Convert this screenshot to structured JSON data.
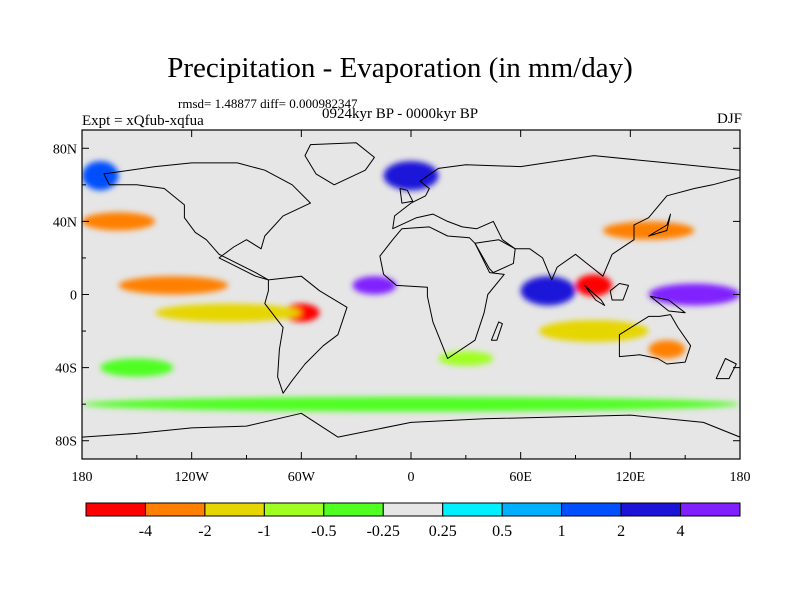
{
  "header": {
    "title": "Precipitation - Evaporation (in mm/day)",
    "stats": "rmsd= 1.48877 diff= 0.000982347",
    "experiment": "Expt = xQfub-xqfua",
    "period": "0924kyr BP - 0000kyr BP",
    "season": "DJF"
  },
  "axes": {
    "x_ticks": [
      {
        "lon": -180,
        "label": "180"
      },
      {
        "lon": -120,
        "label": "120W"
      },
      {
        "lon": -60,
        "label": "60W"
      },
      {
        "lon": 0,
        "label": "0"
      },
      {
        "lon": 60,
        "label": "60E"
      },
      {
        "lon": 120,
        "label": "120E"
      },
      {
        "lon": 180,
        "label": "180"
      }
    ],
    "y_ticks": [
      {
        "lat": 80,
        "label": "80N"
      },
      {
        "lat": 40,
        "label": "40N"
      },
      {
        "lat": 0,
        "label": "0"
      },
      {
        "lat": -40,
        "label": "40S"
      },
      {
        "lat": -80,
        "label": "80S"
      }
    ],
    "lon_range": [
      -180,
      180
    ],
    "lat_range": [
      -90,
      90
    ]
  },
  "colorbar": {
    "colors": [
      "#ff0000",
      "#ff8000",
      "#e6d600",
      "#a0ff20",
      "#50ff20",
      "#e6e6e6",
      "#00f0ff",
      "#00b0ff",
      "#0050ff",
      "#1e14d8",
      "#8020ff"
    ],
    "labels": [
      "-4",
      "-2",
      "-1",
      "-0.5",
      "-0.25",
      "0.25",
      "0.5",
      "1",
      "2",
      "4"
    ]
  },
  "map": {
    "background_color": "#e6e6e6",
    "anomaly_regions": [
      {
        "lon": 155,
        "lat": 0,
        "rx": 25,
        "ry": 6,
        "color": "#8020ff"
      },
      {
        "lon": 75,
        "lat": 2,
        "rx": 15,
        "ry": 8,
        "color": "#1e14d8"
      },
      {
        "lon": -20,
        "lat": 5,
        "rx": 12,
        "ry": 5,
        "color": "#8020ff"
      },
      {
        "lon": 130,
        "lat": 35,
        "rx": 25,
        "ry": 5,
        "color": "#ff8000"
      },
      {
        "lon": 100,
        "lat": 5,
        "rx": 10,
        "ry": 6,
        "color": "#ff0000"
      },
      {
        "lon": -130,
        "lat": 5,
        "rx": 30,
        "ry": 5,
        "color": "#ff8000"
      },
      {
        "lon": -60,
        "lat": -10,
        "rx": 10,
        "ry": 5,
        "color": "#ff0000"
      },
      {
        "lon": -160,
        "lat": 40,
        "rx": 20,
        "ry": 5,
        "color": "#ff8000"
      },
      {
        "lon": -170,
        "lat": 65,
        "rx": 10,
        "ry": 8,
        "color": "#0050ff"
      },
      {
        "lon": 0,
        "lat": 65,
        "rx": 15,
        "ry": 8,
        "color": "#1e14d8"
      },
      {
        "lon": 100,
        "lat": -20,
        "rx": 30,
        "ry": 6,
        "color": "#e6d600"
      },
      {
        "lon": -100,
        "lat": -10,
        "rx": 40,
        "ry": 5,
        "color": "#e6d600"
      },
      {
        "lon": 0,
        "lat": -60,
        "rx": 180,
        "ry": 4,
        "color": "#50ff20"
      },
      {
        "lon": -150,
        "lat": -40,
        "rx": 20,
        "ry": 5,
        "color": "#50ff20"
      },
      {
        "lon": 30,
        "lat": -35,
        "rx": 15,
        "ry": 4,
        "color": "#a0ff20"
      },
      {
        "lon": 140,
        "lat": -30,
        "rx": 10,
        "ry": 5,
        "color": "#ff8000"
      }
    ],
    "continents": [
      {
        "name": "north-america",
        "points": [
          [
            -168,
            66
          ],
          [
            -140,
            70
          ],
          [
            -120,
            72
          ],
          [
            -95,
            72
          ],
          [
            -80,
            68
          ],
          [
            -65,
            60
          ],
          [
            -55,
            50
          ],
          [
            -70,
            43
          ],
          [
            -80,
            32
          ],
          [
            -82,
            25
          ],
          [
            -90,
            30
          ],
          [
            -97,
            26
          ],
          [
            -105,
            20
          ],
          [
            -95,
            15
          ],
          [
            -85,
            10
          ],
          [
            -78,
            8
          ],
          [
            -85,
            12
          ],
          [
            -105,
            22
          ],
          [
            -112,
            30
          ],
          [
            -118,
            34
          ],
          [
            -124,
            42
          ],
          [
            -124,
            49
          ],
          [
            -135,
            58
          ],
          [
            -150,
            60
          ],
          [
            -165,
            60
          ]
        ]
      },
      {
        "name": "greenland",
        "points": [
          [
            -55,
            82
          ],
          [
            -30,
            83
          ],
          [
            -20,
            75
          ],
          [
            -25,
            68
          ],
          [
            -42,
            60
          ],
          [
            -52,
            66
          ],
          [
            -58,
            76
          ]
        ]
      },
      {
        "name": "south-america",
        "points": [
          [
            -78,
            8
          ],
          [
            -60,
            10
          ],
          [
            -50,
            2
          ],
          [
            -35,
            -7
          ],
          [
            -40,
            -22
          ],
          [
            -48,
            -28
          ],
          [
            -58,
            -38
          ],
          [
            -65,
            -47
          ],
          [
            -70,
            -54
          ],
          [
            -73,
            -45
          ],
          [
            -72,
            -30
          ],
          [
            -70,
            -18
          ],
          [
            -80,
            -5
          ],
          [
            -78,
            2
          ]
        ]
      },
      {
        "name": "eurasia",
        "points": [
          [
            -10,
            36
          ],
          [
            -9,
            43
          ],
          [
            0,
            50
          ],
          [
            8,
            54
          ],
          [
            10,
            58
          ],
          [
            5,
            62
          ],
          [
            15,
            69
          ],
          [
            30,
            71
          ],
          [
            60,
            70
          ],
          [
            100,
            76
          ],
          [
            140,
            72
          ],
          [
            180,
            68
          ],
          [
            180,
            64
          ],
          [
            165,
            60
          ],
          [
            155,
            58
          ],
          [
            140,
            54
          ],
          [
            130,
            42
          ],
          [
            122,
            38
          ],
          [
            122,
            30
          ],
          [
            110,
            22
          ],
          [
            105,
            10
          ],
          [
            100,
            14
          ],
          [
            95,
            18
          ],
          [
            90,
            22
          ],
          [
            80,
            15
          ],
          [
            77,
            8
          ],
          [
            72,
            20
          ],
          [
            65,
            25
          ],
          [
            57,
            25
          ],
          [
            50,
            30
          ],
          [
            45,
            40
          ],
          [
            36,
            36
          ],
          [
            28,
            37
          ],
          [
            20,
            40
          ],
          [
            12,
            44
          ],
          [
            3,
            42
          ]
        ]
      },
      {
        "name": "africa",
        "points": [
          [
            -17,
            21
          ],
          [
            -10,
            30
          ],
          [
            -5,
            36
          ],
          [
            10,
            37
          ],
          [
            20,
            32
          ],
          [
            32,
            31
          ],
          [
            35,
            28
          ],
          [
            43,
            12
          ],
          [
            51,
            11
          ],
          [
            42,
            0
          ],
          [
            40,
            -10
          ],
          [
            35,
            -25
          ],
          [
            20,
            -35
          ],
          [
            18,
            -30
          ],
          [
            12,
            -15
          ],
          [
            9,
            -1
          ],
          [
            9,
            4
          ],
          [
            -8,
            5
          ],
          [
            -15,
            11
          ]
        ]
      },
      {
        "name": "australia",
        "points": [
          [
            114,
            -22
          ],
          [
            114,
            -34
          ],
          [
            125,
            -33
          ],
          [
            135,
            -35
          ],
          [
            140,
            -38
          ],
          [
            150,
            -37
          ],
          [
            153,
            -28
          ],
          [
            146,
            -18
          ],
          [
            142,
            -11
          ],
          [
            136,
            -12
          ],
          [
            130,
            -12
          ],
          [
            122,
            -17
          ]
        ]
      },
      {
        "name": "antarctica",
        "points": [
          [
            -180,
            -78
          ],
          [
            -150,
            -76
          ],
          [
            -120,
            -73
          ],
          [
            -90,
            -72
          ],
          [
            -60,
            -65
          ],
          [
            -40,
            -78
          ],
          [
            0,
            -70
          ],
          [
            40,
            -68
          ],
          [
            80,
            -67
          ],
          [
            120,
            -66
          ],
          [
            160,
            -70
          ],
          [
            180,
            -78
          ],
          [
            180,
            -90
          ],
          [
            -180,
            -90
          ]
        ]
      },
      {
        "name": "arabia",
        "points": [
          [
            35,
            28
          ],
          [
            48,
            30
          ],
          [
            57,
            25
          ],
          [
            56,
            17
          ],
          [
            45,
            12
          ],
          [
            43,
            14
          ]
        ]
      },
      {
        "name": "madagascar",
        "points": [
          [
            44,
            -25
          ],
          [
            48,
            -15
          ],
          [
            50,
            -16
          ],
          [
            47,
            -25
          ]
        ]
      },
      {
        "name": "borneo",
        "points": [
          [
            109,
            2
          ],
          [
            114,
            6
          ],
          [
            119,
            5
          ],
          [
            116,
            -3
          ],
          [
            110,
            -3
          ]
        ]
      },
      {
        "name": "sumatra",
        "points": [
          [
            95,
            5
          ],
          [
            104,
            -3
          ],
          [
            106,
            -6
          ],
          [
            101,
            -3
          ]
        ]
      },
      {
        "name": "new-guinea",
        "points": [
          [
            131,
            -1
          ],
          [
            141,
            -3
          ],
          [
            150,
            -10
          ],
          [
            141,
            -9
          ]
        ]
      },
      {
        "name": "japan",
        "points": [
          [
            130,
            32
          ],
          [
            140,
            35
          ],
          [
            142,
            44
          ],
          [
            140,
            38
          ]
        ]
      },
      {
        "name": "great-britain",
        "points": [
          [
            -5,
            50
          ],
          [
            1,
            51
          ],
          [
            -2,
            57
          ],
          [
            -6,
            58
          ]
        ]
      },
      {
        "name": "new-zealand",
        "points": [
          [
            172,
            -35
          ],
          [
            178,
            -38
          ],
          [
            174,
            -46
          ],
          [
            167,
            -46
          ]
        ]
      }
    ]
  }
}
